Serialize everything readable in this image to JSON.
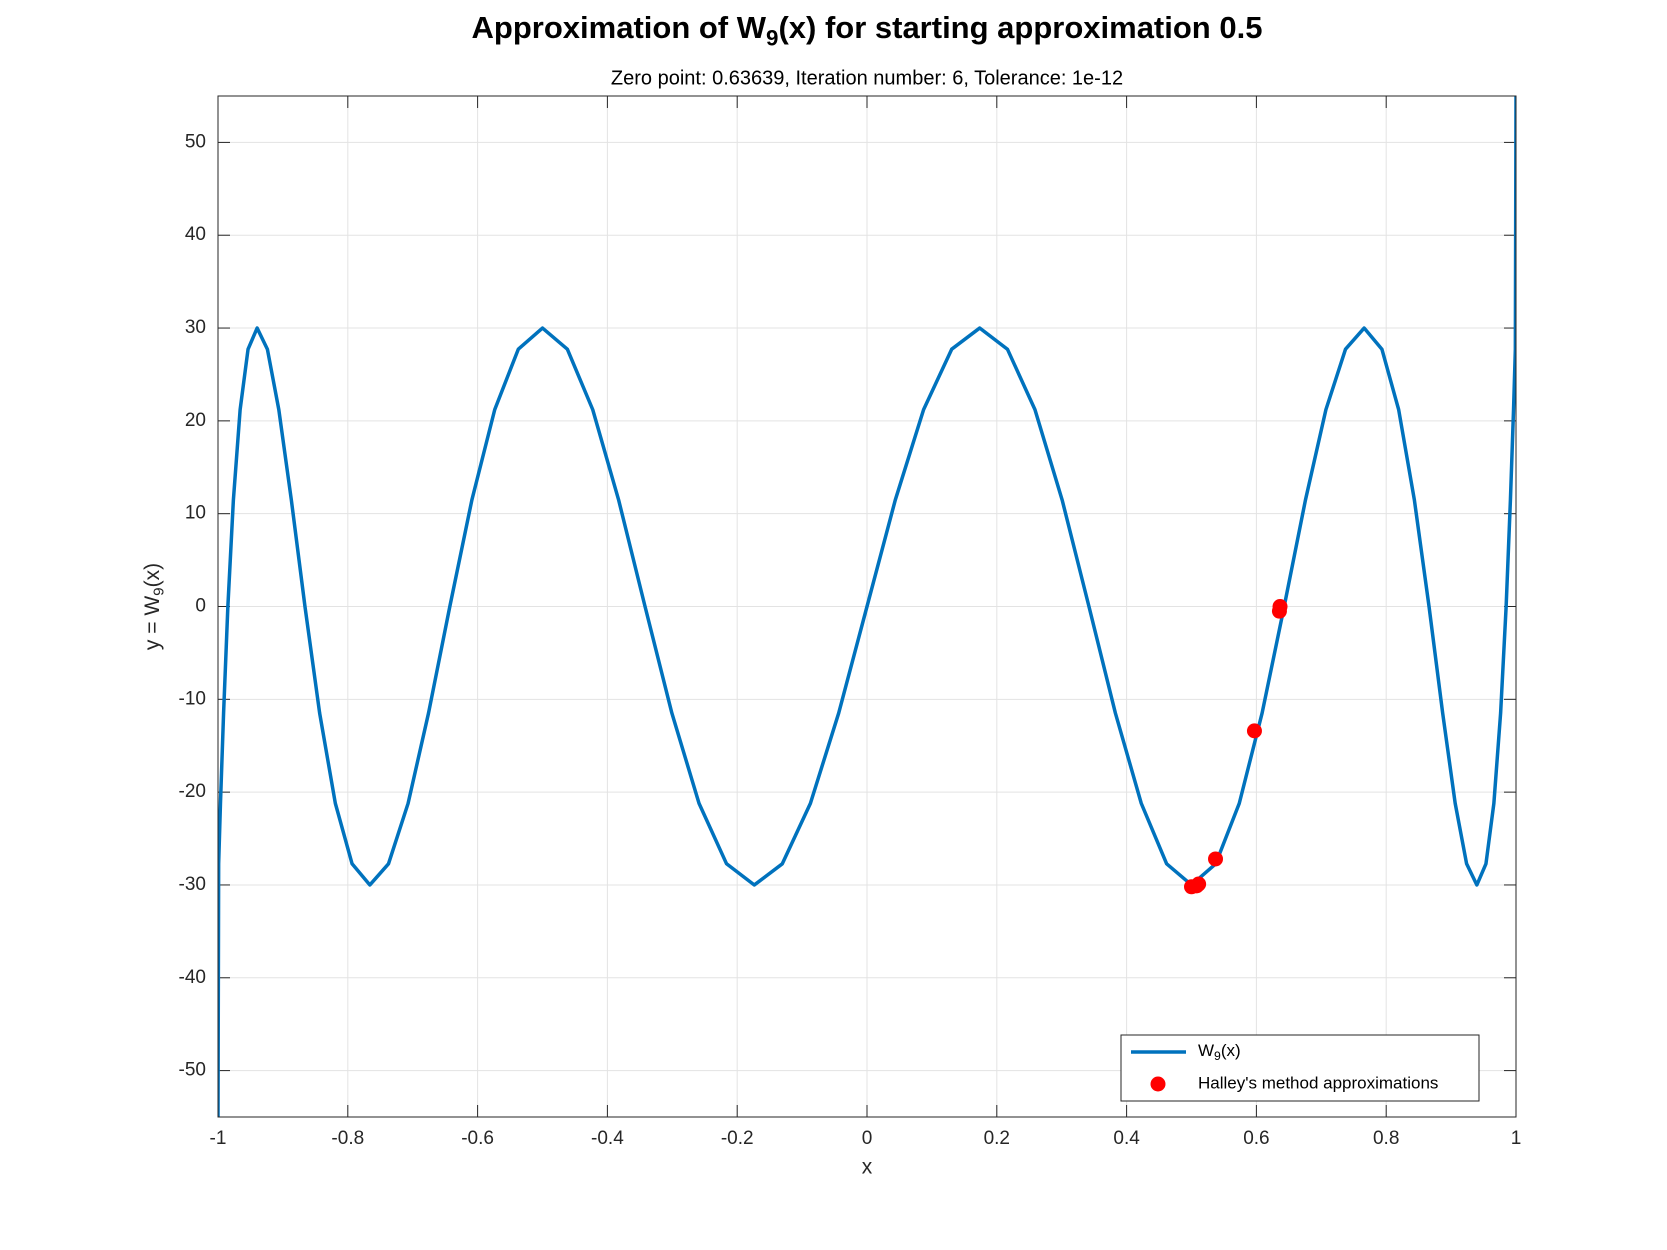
{
  "chart_data": {
    "type": "line",
    "title": [
      "Approximation of W",
      "9",
      "(x) for starting approximation 0.5"
    ],
    "subtitle": "Zero point: 0.63639, Iteration number: 6, Tolerance: 1e-12",
    "xlabel": "x",
    "ylabel": [
      "y = W",
      "9",
      "(x)"
    ],
    "xlim": [
      -1,
      1
    ],
    "ylim": [
      -55,
      55
    ],
    "xticks": [
      -1,
      -0.8,
      -0.6,
      -0.4,
      -0.2,
      0,
      0.2,
      0.4,
      0.6,
      0.8,
      1
    ],
    "yticks": [
      -50,
      -40,
      -30,
      -20,
      -10,
      0,
      10,
      20,
      30,
      40,
      50
    ],
    "grid": true,
    "legend": "lower right",
    "series": [
      {
        "name": [
          "W",
          "9",
          "(x)"
        ],
        "color": "#0072BD",
        "kind": "line",
        "x": [
          -1,
          -0.999,
          -0.9962,
          -0.9914,
          -0.9848,
          -0.9763,
          -0.9659,
          -0.9537,
          -0.9397,
          -0.9239,
          -0.9063,
          -0.887,
          -0.866,
          -0.8434,
          -0.8192,
          -0.7934,
          -0.766,
          -0.7373,
          -0.7071,
          -0.6756,
          -0.6428,
          -0.6088,
          -0.5736,
          -0.5373,
          -0.5,
          -0.4617,
          -0.4226,
          -0.3827,
          -0.342,
          -0.3007,
          -0.2588,
          -0.2164,
          -0.1736,
          -0.1305,
          -0.0872,
          -0.0436,
          0,
          0.0436,
          0.0872,
          0.1305,
          0.1736,
          0.2164,
          0.2588,
          0.3007,
          0.342,
          0.3827,
          0.4226,
          0.4617,
          0.5,
          0.5373,
          0.5736,
          0.6088,
          0.6428,
          0.6756,
          0.7071,
          0.7373,
          0.766,
          0.7934,
          0.8192,
          0.8434,
          0.866,
          0.887,
          0.9063,
          0.9239,
          0.9397,
          0.9537,
          0.9659,
          0.9763,
          0.9848,
          0.9914,
          0.9962,
          0.999,
          1
        ],
        "values": [
          -55,
          -27.72,
          -21.21,
          -11.48,
          0,
          11.48,
          21.21,
          27.72,
          30,
          27.72,
          21.21,
          11.48,
          0,
          -11.48,
          -21.21,
          -27.72,
          -30,
          -27.72,
          -21.21,
          -11.48,
          0,
          11.48,
          21.21,
          27.72,
          30,
          27.72,
          21.21,
          11.48,
          0,
          -11.48,
          -21.21,
          -27.72,
          -30,
          -27.72,
          -21.21,
          -11.48,
          0,
          11.48,
          21.21,
          27.72,
          30,
          27.72,
          21.21,
          11.48,
          0,
          -11.48,
          -21.21,
          -27.72,
          -30,
          -27.72,
          -21.21,
          -11.48,
          0,
          11.48,
          21.21,
          27.72,
          30,
          27.72,
          21.21,
          11.48,
          0,
          -11.48,
          -21.21,
          -27.72,
          -30,
          -27.72,
          -21.21,
          -11.48,
          0,
          11.48,
          21.21,
          27.72,
          55
        ]
      },
      {
        "name": "Halley's method approximations",
        "color": "#ff0000",
        "kind": "markers",
        "x": [
          0.5,
          0.508,
          0.511,
          0.537,
          0.597,
          0.6355,
          0.6364
        ],
        "values": [
          -30.2,
          -30.1,
          -29.9,
          -27.2,
          -13.4,
          -0.5,
          0
        ]
      }
    ]
  }
}
